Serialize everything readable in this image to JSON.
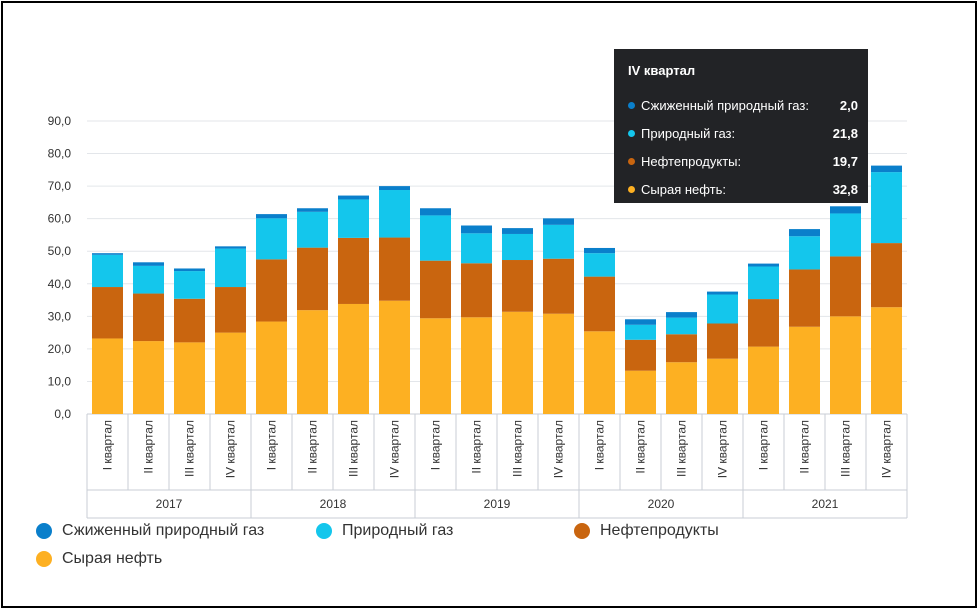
{
  "chart_data": {
    "type": "bar",
    "stacked": true,
    "title": "",
    "xlabel": "",
    "ylabel": "",
    "ylim": [
      0,
      90
    ],
    "yticks": [
      "0,0",
      "10,0",
      "20,0",
      "30,0",
      "40,0",
      "50,0",
      "60,0",
      "70,0",
      "80,0",
      "90,0"
    ],
    "grid": true,
    "categories": [
      "I квартал",
      "II квартал",
      "III квартал",
      "IV квартал",
      "I квартал",
      "II квартал",
      "III квартал",
      "IV квартал",
      "I квартал",
      "II квартал",
      "III квартал",
      "IV квартал",
      "I квартал",
      "II квартал",
      "III квартал",
      "IV квартал",
      "I квартал",
      "II квартал",
      "III квартал",
      "IV квартал"
    ],
    "groups": [
      {
        "label": "2017",
        "count": 4
      },
      {
        "label": "2018",
        "count": 4
      },
      {
        "label": "2019",
        "count": 4
      },
      {
        "label": "2020",
        "count": 4
      },
      {
        "label": "2021",
        "count": 4
      }
    ],
    "series": [
      {
        "name": "Сырая нефть",
        "color": "#FDB022",
        "values": [
          23.2,
          22.4,
          22.0,
          25.0,
          28.4,
          31.9,
          33.8,
          34.8,
          29.4,
          29.7,
          31.4,
          30.8,
          25.4,
          13.3,
          15.9,
          17.0,
          20.7,
          26.8,
          30.0,
          32.8
        ]
      },
      {
        "name": "Нефтепродукты",
        "color": "#C9650F",
        "values": [
          15.8,
          14.6,
          13.4,
          14.0,
          19.1,
          19.2,
          20.3,
          19.4,
          17.7,
          16.6,
          15.9,
          16.9,
          16.8,
          9.5,
          8.6,
          10.8,
          14.6,
          17.6,
          18.4,
          19.7
        ]
      },
      {
        "name": "Природный газ",
        "color": "#14C6EC",
        "values": [
          9.9,
          8.5,
          8.5,
          11.8,
          12.6,
          11.0,
          11.8,
          14.6,
          13.9,
          9.2,
          8.0,
          10.4,
          7.2,
          4.6,
          5.1,
          8.9,
          10.0,
          10.2,
          13.2,
          21.8
        ]
      },
      {
        "name": "Сжиженный природный газ",
        "color": "#0A7FCB",
        "values": [
          0.5,
          1.1,
          0.8,
          0.7,
          1.3,
          1.1,
          1.2,
          1.2,
          2.2,
          2.4,
          1.8,
          2.0,
          1.6,
          1.7,
          1.7,
          0.9,
          0.9,
          2.2,
          2.2,
          2.0
        ]
      }
    ]
  },
  "tooltip": {
    "title": "IV квартал",
    "rows": [
      {
        "label": "Сжиженный природный газ:",
        "value": "2,0",
        "color": "#0A7FCB"
      },
      {
        "label": "Природный газ:",
        "value": "21,8",
        "color": "#14C6EC"
      },
      {
        "label": "Нефтепродукты:",
        "value": "19,7",
        "color": "#C9650F"
      },
      {
        "label": "Сырая нефть:",
        "value": "32,8",
        "color": "#FDB022"
      }
    ]
  },
  "legend": [
    {
      "label": "Сжиженный природный газ",
      "color": "#0A7FCB"
    },
    {
      "label": "Природный газ",
      "color": "#14C6EC"
    },
    {
      "label": "Нефтепродукты",
      "color": "#C9650F"
    },
    {
      "label": "Сырая нефть",
      "color": "#FDB022"
    }
  ]
}
